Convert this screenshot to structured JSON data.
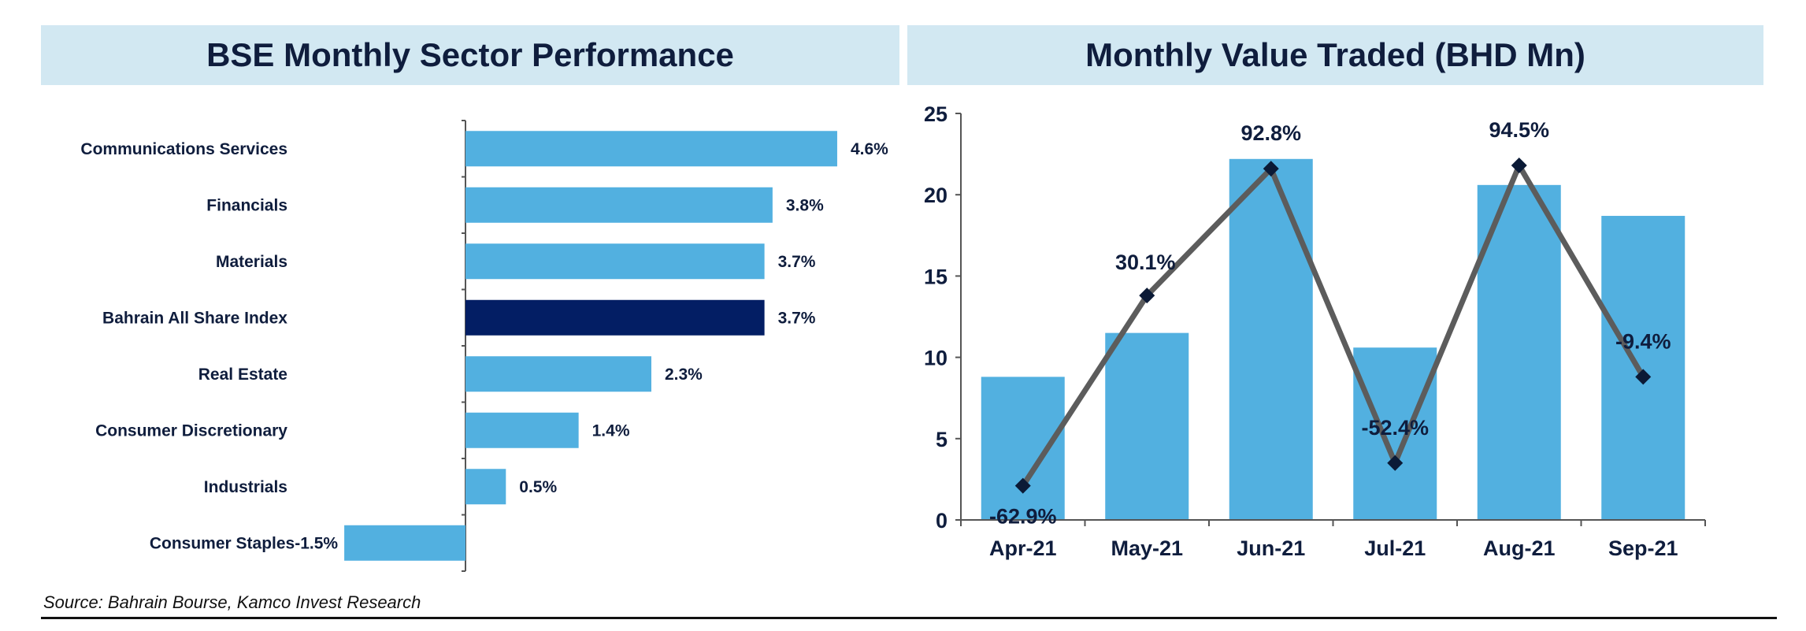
{
  "colors": {
    "bar": "#52b0e0",
    "highlight_bar": "#031e64",
    "line": "#5c5c5c",
    "marker": "#0b1a36",
    "text": "#0f1d3d",
    "title_bg": "#d2e8f2"
  },
  "source": "Source: Bahrain Bourse, Kamco Invest Research",
  "chart_data": [
    {
      "type": "bar",
      "orientation": "horizontal",
      "title": "BSE Monthly Sector Performance",
      "categories": [
        "Communications Services",
        "Financials",
        "Materials",
        "Bahrain All Share Index",
        "Real Estate",
        "Consumer Discretionary",
        "Industrials",
        "Consumer Staples"
      ],
      "values": [
        4.6,
        3.8,
        3.7,
        3.7,
        2.3,
        1.4,
        0.5,
        -1.5
      ],
      "labels": [
        "4.6%",
        "3.8%",
        "3.7%",
        "3.7%",
        "2.3%",
        "1.4%",
        "0.5%",
        "-1.5%"
      ],
      "highlight": "Bahrain All Share Index",
      "grid": false,
      "legend": "none"
    },
    {
      "type": "bar",
      "title": "Monthly Value Traded (BHD Mn)",
      "categories": [
        "Apr-21",
        "May-21",
        "Jun-21",
        "Jul-21",
        "Aug-21",
        "Sep-21"
      ],
      "values": [
        8.8,
        11.5,
        22.2,
        10.6,
        20.6,
        18.7
      ],
      "ylim": [
        0,
        25
      ],
      "yticks": [
        "0",
        "5",
        "10",
        "15",
        "20",
        "25"
      ],
      "overlay_line": {
        "type": "line",
        "values": [
          2.1,
          13.8,
          21.6,
          3.5,
          21.8,
          8.8
        ],
        "labels": [
          "-62.9%",
          "30.1%",
          "92.8%",
          "-52.4%",
          "94.5%",
          "-9.4%"
        ]
      },
      "grid": false,
      "legend": "none"
    }
  ]
}
